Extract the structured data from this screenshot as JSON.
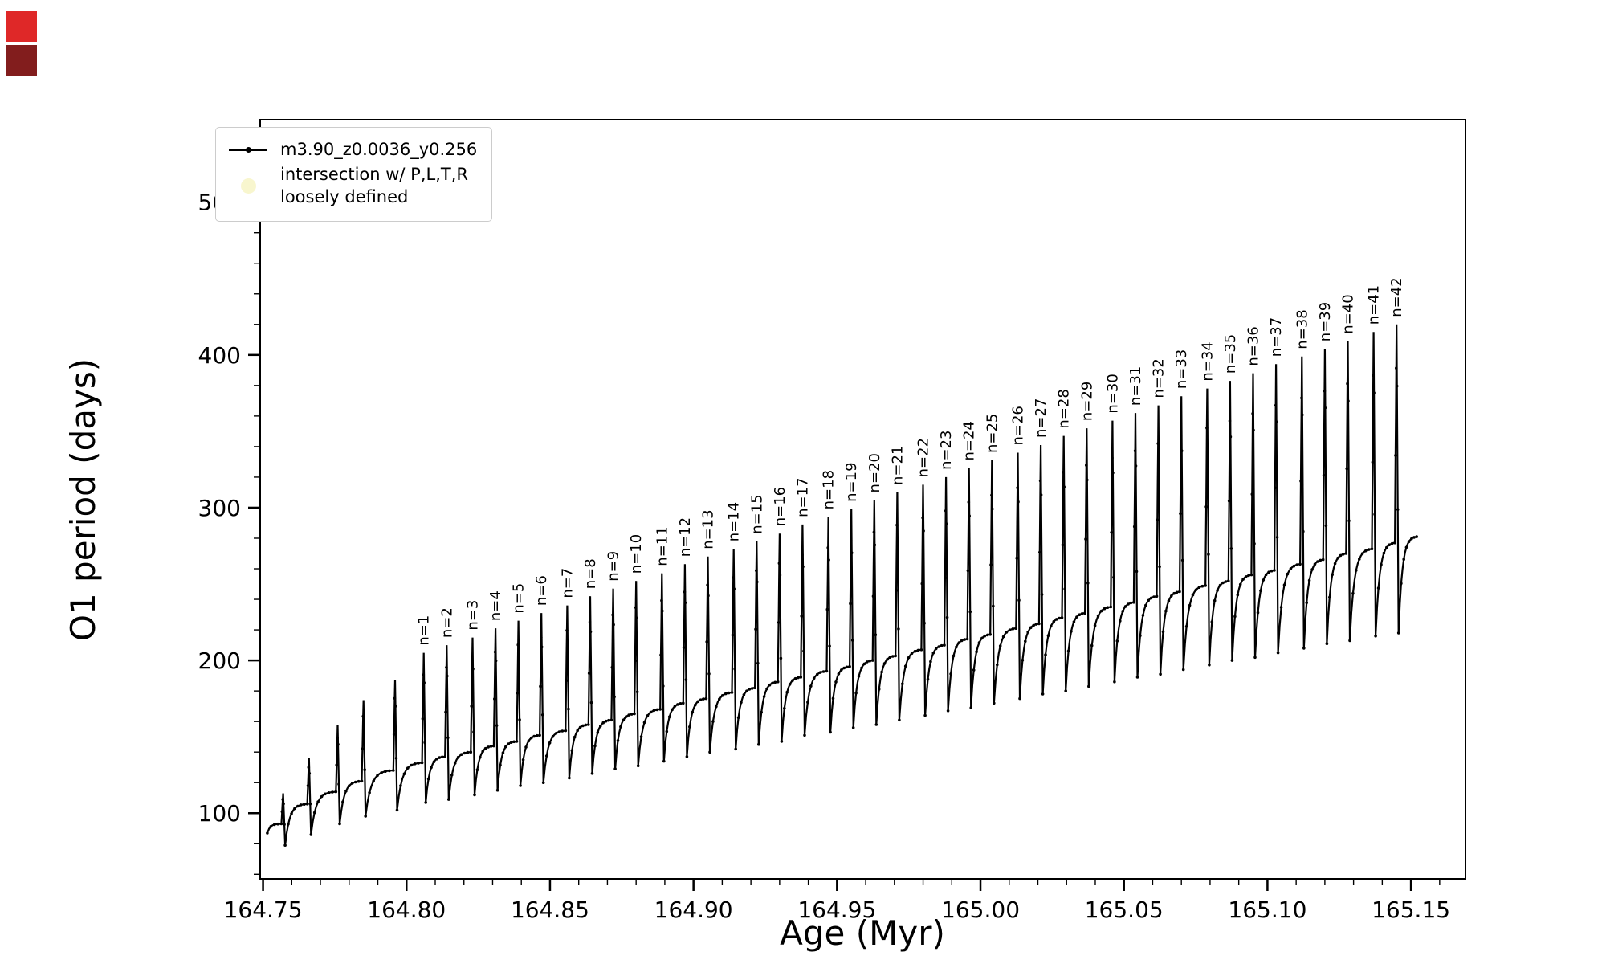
{
  "decorations": {
    "square_top_color": "#df2828",
    "square_bottom_color": "#821d1d"
  },
  "chart_data": {
    "type": "line",
    "xlabel": "Age (Myr)",
    "ylabel": "O1 period (days)",
    "xlim": [
      164.749,
      165.169
    ],
    "ylim": [
      57,
      554
    ],
    "xticks": [
      164.75,
      164.8,
      164.85,
      164.9,
      164.95,
      165.0,
      165.05,
      165.1,
      165.15
    ],
    "yticks": [
      100,
      200,
      300,
      400,
      500
    ],
    "x_minor_step": 0.01,
    "y_minor_step": 20,
    "grid": false,
    "line_color": "#000000",
    "legend": {
      "position": "upper-left",
      "entries": [
        {
          "label": "m3.90_z0.0036_y0.256",
          "marker": "line-dot",
          "color": "#000000"
        },
        {
          "label": "intersection w/ P,L,T,R",
          "label2": "loosely defined",
          "marker": "dot",
          "color": "#f5f1b4"
        }
      ]
    },
    "start": {
      "x": 164.7515,
      "y": 87
    },
    "end": {
      "x": 165.152,
      "y": 281
    },
    "spikes": [
      {
        "x": 164.757,
        "peak": 113,
        "base": 93,
        "dip": 79,
        "label": null
      },
      {
        "x": 164.766,
        "peak": 136,
        "base": 106,
        "dip": 86,
        "label": null
      },
      {
        "x": 164.776,
        "peak": 158,
        "base": 114,
        "dip": 93,
        "label": null
      },
      {
        "x": 164.785,
        "peak": 174,
        "base": 121,
        "dip": 98,
        "label": null
      },
      {
        "x": 164.796,
        "peak": 187,
        "base": 128,
        "dip": 102,
        "label": null
      },
      {
        "x": 164.806,
        "peak": 205,
        "base": 133,
        "dip": 107,
        "label": "n=1"
      },
      {
        "x": 164.814,
        "peak": 210,
        "base": 137,
        "dip": 109,
        "label": "n=2"
      },
      {
        "x": 164.823,
        "peak": 215,
        "base": 140,
        "dip": 112,
        "label": "n=3"
      },
      {
        "x": 164.831,
        "peak": 221,
        "base": 144,
        "dip": 115,
        "label": "n=4"
      },
      {
        "x": 164.839,
        "peak": 226,
        "base": 147,
        "dip": 118,
        "label": "n=5"
      },
      {
        "x": 164.847,
        "peak": 231,
        "base": 151,
        "dip": 120,
        "label": "n=6"
      },
      {
        "x": 164.856,
        "peak": 236,
        "base": 154,
        "dip": 123,
        "label": "n=7"
      },
      {
        "x": 164.864,
        "peak": 242,
        "base": 158,
        "dip": 126,
        "label": "n=8"
      },
      {
        "x": 164.872,
        "peak": 247,
        "base": 161,
        "dip": 129,
        "label": "n=9"
      },
      {
        "x": 164.88,
        "peak": 252,
        "base": 165,
        "dip": 131,
        "label": "n=10"
      },
      {
        "x": 164.889,
        "peak": 257,
        "base": 168,
        "dip": 134,
        "label": "n=11"
      },
      {
        "x": 164.897,
        "peak": 263,
        "base": 172,
        "dip": 137,
        "label": "n=12"
      },
      {
        "x": 164.905,
        "peak": 268,
        "base": 175,
        "dip": 140,
        "label": "n=13"
      },
      {
        "x": 164.914,
        "peak": 273,
        "base": 179,
        "dip": 142,
        "label": "n=14"
      },
      {
        "x": 164.922,
        "peak": 278,
        "base": 182,
        "dip": 145,
        "label": "n=15"
      },
      {
        "x": 164.93,
        "peak": 283,
        "base": 186,
        "dip": 147,
        "label": "n=16"
      },
      {
        "x": 164.938,
        "peak": 289,
        "base": 189,
        "dip": 151,
        "label": "n=17"
      },
      {
        "x": 164.947,
        "peak": 294,
        "base": 193,
        "dip": 153,
        "label": "n=18"
      },
      {
        "x": 164.955,
        "peak": 299,
        "base": 196,
        "dip": 156,
        "label": "n=19"
      },
      {
        "x": 164.963,
        "peak": 305,
        "base": 200,
        "dip": 158,
        "label": "n=20"
      },
      {
        "x": 164.971,
        "peak": 310,
        "base": 203,
        "dip": 161,
        "label": "n=21"
      },
      {
        "x": 164.98,
        "peak": 315,
        "base": 207,
        "dip": 164,
        "label": "n=22"
      },
      {
        "x": 164.988,
        "peak": 320,
        "base": 210,
        "dip": 167,
        "label": "n=23"
      },
      {
        "x": 164.996,
        "peak": 326,
        "base": 214,
        "dip": 169,
        "label": "n=24"
      },
      {
        "x": 165.004,
        "peak": 331,
        "base": 217,
        "dip": 172,
        "label": "n=25"
      },
      {
        "x": 165.013,
        "peak": 336,
        "base": 221,
        "dip": 175,
        "label": "n=26"
      },
      {
        "x": 165.021,
        "peak": 341,
        "base": 224,
        "dip": 178,
        "label": "n=27"
      },
      {
        "x": 165.029,
        "peak": 347,
        "base": 228,
        "dip": 180,
        "label": "n=28"
      },
      {
        "x": 165.037,
        "peak": 352,
        "base": 231,
        "dip": 183,
        "label": "n=29"
      },
      {
        "x": 165.046,
        "peak": 357,
        "base": 235,
        "dip": 186,
        "label": "n=30"
      },
      {
        "x": 165.054,
        "peak": 362,
        "base": 238,
        "dip": 189,
        "label": "n=31"
      },
      {
        "x": 165.062,
        "peak": 367,
        "base": 242,
        "dip": 191,
        "label": "n=32"
      },
      {
        "x": 165.07,
        "peak": 373,
        "base": 245,
        "dip": 194,
        "label": "n=33"
      },
      {
        "x": 165.079,
        "peak": 378,
        "base": 249,
        "dip": 197,
        "label": "n=34"
      },
      {
        "x": 165.087,
        "peak": 383,
        "base": 252,
        "dip": 200,
        "label": "n=35"
      },
      {
        "x": 165.095,
        "peak": 388,
        "base": 256,
        "dip": 202,
        "label": "n=36"
      },
      {
        "x": 165.103,
        "peak": 394,
        "base": 259,
        "dip": 205,
        "label": "n=37"
      },
      {
        "x": 165.112,
        "peak": 399,
        "base": 263,
        "dip": 208,
        "label": "n=38"
      },
      {
        "x": 165.12,
        "peak": 404,
        "base": 266,
        "dip": 211,
        "label": "n=39"
      },
      {
        "x": 165.128,
        "peak": 409,
        "base": 270,
        "dip": 213,
        "label": "n=40"
      },
      {
        "x": 165.137,
        "peak": 415,
        "base": 273,
        "dip": 216,
        "label": "n=41"
      },
      {
        "x": 165.145,
        "peak": 420,
        "base": 277,
        "dip": 218,
        "label": "n=42"
      }
    ]
  }
}
